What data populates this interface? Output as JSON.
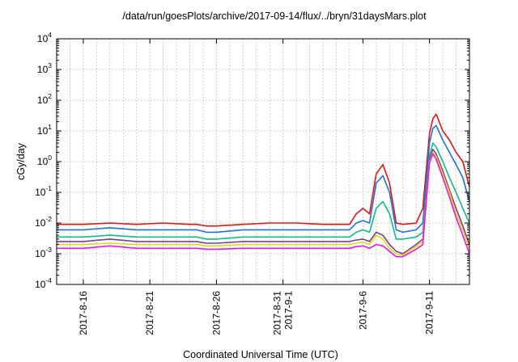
{
  "chart_data": {
    "type": "line",
    "title": "/data/run/goesPlots/archive/2017-09-14/flux/../bryn/31daysMars.plot",
    "xlabel": "Coordinated Universal Time (UTC)",
    "ylabel": "cGy/day",
    "y_scale": "log",
    "ylim": [
      0.0001,
      10000
    ],
    "xlim": [
      "2017-08-14",
      "2017-09-14"
    ],
    "grid": true,
    "x_ticks": [
      {
        "date": "2017-08-16",
        "label": [
          "2017-8-16"
        ]
      },
      {
        "date": "2017-08-21",
        "label": [
          "2017-8-21"
        ]
      },
      {
        "date": "2017-08-26",
        "label": [
          "2017-8-26"
        ]
      },
      {
        "date": "2017-08-31",
        "label": [
          "2017-8-31",
          "2017-9-1"
        ]
      },
      {
        "date": "2017-09-06",
        "label": [
          "2017-9-6"
        ]
      },
      {
        "date": "2017-09-11",
        "label": [
          "2017-9-11"
        ]
      }
    ],
    "y_ticks": [
      {
        "value": 0.0001,
        "base": "10",
        "exp": "-4"
      },
      {
        "value": 0.001,
        "base": "10",
        "exp": "-3"
      },
      {
        "value": 0.01,
        "base": "10",
        "exp": "-2"
      },
      {
        "value": 0.1,
        "base": "10",
        "exp": "-1"
      },
      {
        "value": 1,
        "base": "10",
        "exp": "0"
      },
      {
        "value": 10,
        "base": "10",
        "exp": "1"
      },
      {
        "value": 100,
        "base": "10",
        "exp": "2"
      },
      {
        "value": 1000,
        "base": "10",
        "exp": "3"
      },
      {
        "value": 10000,
        "base": "10",
        "exp": "4"
      }
    ],
    "series": [
      {
        "color": "#ee1111",
        "x": [
          "2017-08-14",
          "2017-08-16",
          "2017-08-18",
          "2017-08-20",
          "2017-08-22",
          "2017-08-24",
          "2017-08-24T12:00",
          "2017-08-25T06:00",
          "2017-08-26",
          "2017-08-28",
          "2017-08-30",
          "2017-09-01",
          "2017-09-03",
          "2017-09-05",
          "2017-09-05T12:00",
          "2017-09-06",
          "2017-09-06T12:00",
          "2017-09-07",
          "2017-09-07T12:00",
          "2017-09-08",
          "2017-09-08T12:00",
          "2017-09-09",
          "2017-09-10",
          "2017-09-10T12:00",
          "2017-09-11",
          "2017-09-11T06:00",
          "2017-09-11T12:00",
          "2017-09-12",
          "2017-09-12T12:00",
          "2017-09-13",
          "2017-09-13T12:00",
          "2017-09-14"
        ],
        "y": [
          0.009,
          0.009,
          0.01,
          0.009,
          0.01,
          0.009,
          0.009,
          0.008,
          0.008,
          0.009,
          0.01,
          0.01,
          0.009,
          0.009,
          0.02,
          0.03,
          0.02,
          0.4,
          0.8,
          0.2,
          0.01,
          0.009,
          0.01,
          0.03,
          8,
          25,
          35,
          10,
          5,
          2,
          1,
          0.15
        ]
      },
      {
        "color": "#1f6fe8",
        "x": [
          "2017-08-14",
          "2017-08-16",
          "2017-08-18",
          "2017-08-20",
          "2017-08-22",
          "2017-08-24",
          "2017-08-24T12:00",
          "2017-08-25T06:00",
          "2017-08-26",
          "2017-08-28",
          "2017-08-30",
          "2017-09-01",
          "2017-09-03",
          "2017-09-05",
          "2017-09-05T12:00",
          "2017-09-06",
          "2017-09-06T12:00",
          "2017-09-07",
          "2017-09-07T12:00",
          "2017-09-08",
          "2017-09-08T12:00",
          "2017-09-09",
          "2017-09-10",
          "2017-09-10T12:00",
          "2017-09-11",
          "2017-09-11T06:00",
          "2017-09-11T12:00",
          "2017-09-12",
          "2017-09-12T12:00",
          "2017-09-13",
          "2017-09-13T12:00",
          "2017-09-14"
        ],
        "y": [
          0.006,
          0.006,
          0.007,
          0.006,
          0.006,
          0.006,
          0.006,
          0.005,
          0.005,
          0.006,
          0.006,
          0.006,
          0.006,
          0.006,
          0.01,
          0.012,
          0.01,
          0.2,
          0.35,
          0.1,
          0.006,
          0.005,
          0.006,
          0.01,
          4,
          12,
          15,
          5,
          2,
          0.8,
          0.3,
          0.05
        ]
      },
      {
        "color": "#11bb88",
        "x": [
          "2017-08-14",
          "2017-08-16",
          "2017-08-18",
          "2017-08-20",
          "2017-08-22",
          "2017-08-24",
          "2017-08-24T12:00",
          "2017-08-25T06:00",
          "2017-08-26",
          "2017-08-28",
          "2017-08-30",
          "2017-09-01",
          "2017-09-03",
          "2017-09-05",
          "2017-09-05T12:00",
          "2017-09-06",
          "2017-09-06T12:00",
          "2017-09-07",
          "2017-09-07T12:00",
          "2017-09-08",
          "2017-09-08T12:00",
          "2017-09-09",
          "2017-09-10",
          "2017-09-10T12:00",
          "2017-09-11",
          "2017-09-11T06:00",
          "2017-09-11T12:00",
          "2017-09-12",
          "2017-09-12T12:00",
          "2017-09-13",
          "2017-09-13T12:00",
          "2017-09-14"
        ],
        "y": [
          0.0035,
          0.0035,
          0.004,
          0.0035,
          0.0035,
          0.0035,
          0.0035,
          0.003,
          0.003,
          0.0035,
          0.0035,
          0.0035,
          0.0035,
          0.0035,
          0.005,
          0.006,
          0.005,
          0.03,
          0.05,
          0.02,
          0.003,
          0.003,
          0.0035,
          0.005,
          1.5,
          4,
          3,
          1,
          0.3,
          0.1,
          0.03,
          0.01
        ]
      },
      {
        "color": "#7a3aa6",
        "x": [
          "2017-08-14",
          "2017-08-16",
          "2017-08-18",
          "2017-08-20",
          "2017-08-22",
          "2017-08-24",
          "2017-08-24T12:00",
          "2017-08-25T06:00",
          "2017-08-26",
          "2017-08-28",
          "2017-08-30",
          "2017-09-01",
          "2017-09-03",
          "2017-09-05",
          "2017-09-05T12:00",
          "2017-09-06",
          "2017-09-06T12:00",
          "2017-09-07",
          "2017-09-07T12:00",
          "2017-09-08",
          "2017-09-08T12:00",
          "2017-09-09",
          "2017-09-10",
          "2017-09-10T12:00",
          "2017-09-11",
          "2017-09-11T06:00",
          "2017-09-11T12:00",
          "2017-09-12",
          "2017-09-12T12:00",
          "2017-09-13",
          "2017-09-13T12:00",
          "2017-09-14"
        ],
        "y": [
          0.0025,
          0.0025,
          0.003,
          0.0025,
          0.0025,
          0.0025,
          0.0025,
          0.0022,
          0.0022,
          0.0025,
          0.0025,
          0.0025,
          0.0025,
          0.0025,
          0.0028,
          0.003,
          0.0025,
          0.005,
          0.004,
          0.002,
          0.0012,
          0.001,
          0.002,
          0.003,
          1.2,
          2.5,
          1.8,
          0.5,
          0.12,
          0.03,
          0.008,
          0.002
        ]
      },
      {
        "color": "#dddd00",
        "x": [
          "2017-08-14",
          "2017-08-16",
          "2017-08-18",
          "2017-08-20",
          "2017-08-22",
          "2017-08-24",
          "2017-08-24T12:00",
          "2017-08-25T06:00",
          "2017-08-26",
          "2017-08-28",
          "2017-08-30",
          "2017-09-01",
          "2017-09-03",
          "2017-09-05",
          "2017-09-05T12:00",
          "2017-09-06",
          "2017-09-06T12:00",
          "2017-09-07",
          "2017-09-07T12:00",
          "2017-09-08",
          "2017-09-08T12:00",
          "2017-09-09",
          "2017-09-10",
          "2017-09-10T12:00",
          "2017-09-11",
          "2017-09-11T06:00",
          "2017-09-11T12:00",
          "2017-09-12",
          "2017-09-12T12:00",
          "2017-09-13",
          "2017-09-13T12:00",
          "2017-09-14"
        ],
        "y": [
          0.002,
          0.002,
          0.0022,
          0.002,
          0.002,
          0.002,
          0.002,
          0.0018,
          0.0018,
          0.002,
          0.002,
          0.002,
          0.002,
          0.002,
          0.0022,
          0.0024,
          0.002,
          0.004,
          0.003,
          0.0015,
          0.001,
          0.0009,
          0.0017,
          0.0025,
          1,
          2,
          1.5,
          0.4,
          0.1,
          0.02,
          0.006,
          0.0015
        ]
      },
      {
        "color": "#ee11ee",
        "x": [
          "2017-08-14",
          "2017-08-16",
          "2017-08-18",
          "2017-08-20",
          "2017-08-22",
          "2017-08-24",
          "2017-08-24T12:00",
          "2017-08-25T06:00",
          "2017-08-26",
          "2017-08-28",
          "2017-08-30",
          "2017-09-01",
          "2017-09-03",
          "2017-09-05",
          "2017-09-05T12:00",
          "2017-09-06",
          "2017-09-06T12:00",
          "2017-09-07",
          "2017-09-07T12:00",
          "2017-09-08",
          "2017-09-08T12:00",
          "2017-09-09",
          "2017-09-10",
          "2017-09-10T12:00",
          "2017-09-11",
          "2017-09-11T06:00",
          "2017-09-11T12:00",
          "2017-09-12",
          "2017-09-12T12:00",
          "2017-09-13",
          "2017-09-13T12:00",
          "2017-09-14"
        ],
        "y": [
          0.0015,
          0.0015,
          0.0018,
          0.0015,
          0.0015,
          0.0015,
          0.0015,
          0.0014,
          0.0014,
          0.0015,
          0.0015,
          0.0015,
          0.0015,
          0.0015,
          0.0017,
          0.0018,
          0.0015,
          0.002,
          0.0018,
          0.0012,
          0.0008,
          0.0008,
          0.0014,
          0.002,
          0.9,
          1.8,
          1.2,
          0.3,
          0.07,
          0.015,
          0.004,
          0.001
        ]
      }
    ]
  }
}
